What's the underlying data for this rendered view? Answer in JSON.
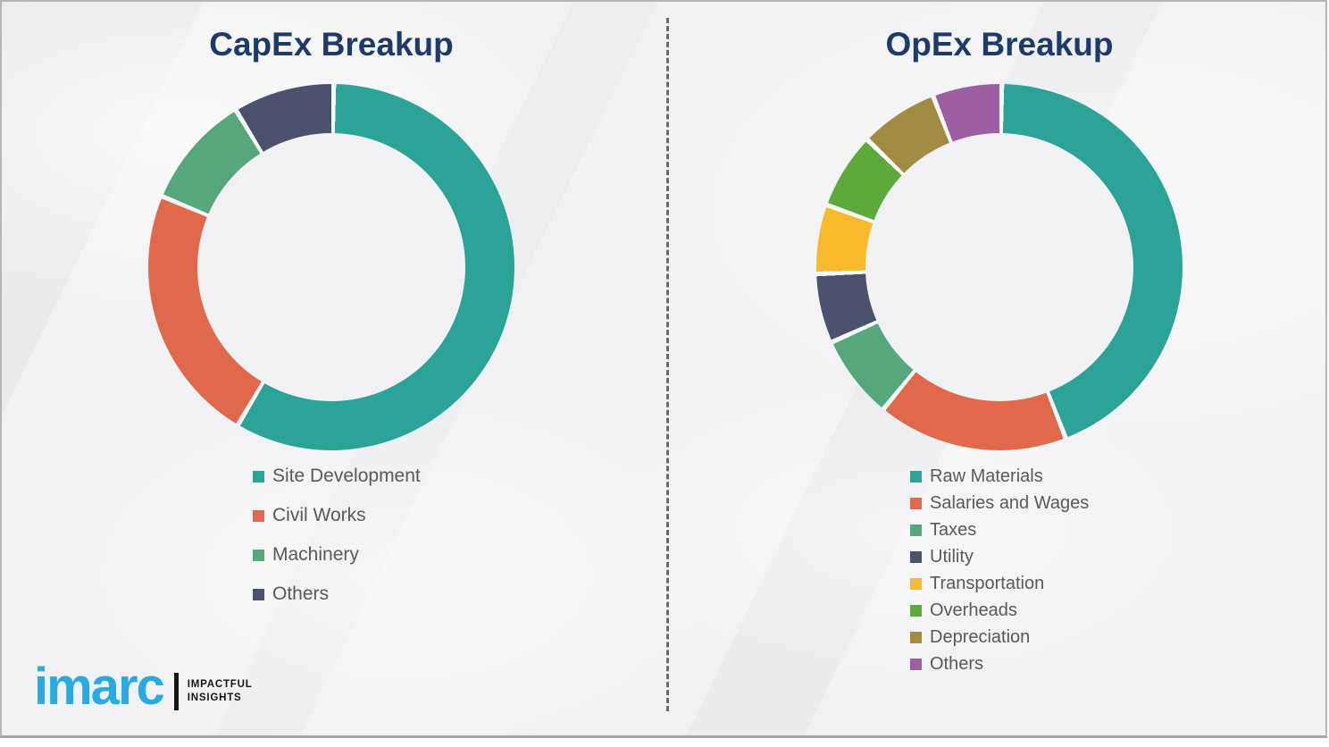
{
  "page": {
    "background_color": "#f1f2f5",
    "border_color": "#b6b6b6",
    "divider_color": "#6a6a6a",
    "title_color": "#203a68",
    "legend_text_color": "#595959",
    "segment_gap_color": "#f7f8fa"
  },
  "chart_data": [
    {
      "type": "pie",
      "subtype": "donut",
      "title": "CapEx Breakup",
      "categories": [
        "Site Development",
        "Civil Works",
        "Machinery",
        "Others"
      ],
      "values": [
        58.3,
        22.8,
        10.0,
        8.9
      ],
      "unit": "percent",
      "values_note": "estimated from arc angles; no numeric labels shown",
      "colors": [
        "#2ba396",
        "#e0694c",
        "#57a77d",
        "#4a536e"
      ],
      "start_angle_deg": 0,
      "direction": "clockwise",
      "donut_hole_ratio": 0.73,
      "legend_position": "below-chart-left",
      "data_labels": false
    },
    {
      "type": "pie",
      "subtype": "donut",
      "title": "OpEx Breakup",
      "categories": [
        "Raw Materials",
        "Salaries and Wages",
        "Taxes",
        "Utility",
        "Transportation",
        "Overheads",
        "Depreciation",
        "Others"
      ],
      "values": [
        43.9,
        16.8,
        7.4,
        6.1,
        6.1,
        6.7,
        6.9,
        6.1
      ],
      "unit": "percent",
      "values_note": "estimated from arc angles; no numeric labels shown",
      "colors": [
        "#2ba396",
        "#e0694c",
        "#57a77d",
        "#4a536e",
        "#f8b92a",
        "#5ea93c",
        "#a28b42",
        "#9c5fa3"
      ],
      "start_angle_deg": 0,
      "direction": "clockwise",
      "donut_hole_ratio": 0.73,
      "legend_position": "below-chart-left",
      "data_labels": false
    }
  ],
  "logo": {
    "brand": "imarc",
    "tagline_line1": "IMPACTFUL",
    "tagline_line2": "INSIGHTS",
    "brand_color": "#29abe2"
  }
}
